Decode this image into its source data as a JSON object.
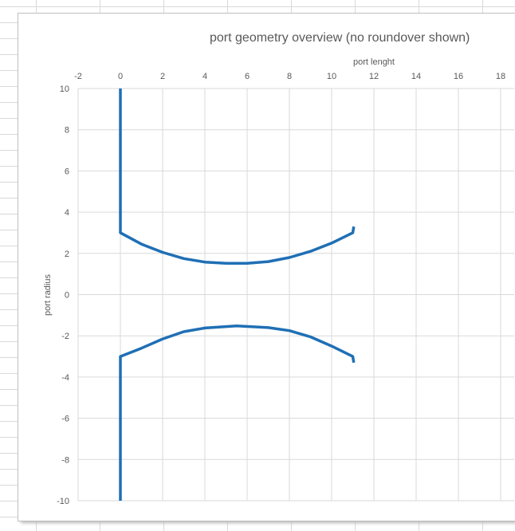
{
  "chart_data": {
    "type": "line",
    "title": "port geometry overview (no roundover shown)",
    "xlabel": "port lenght",
    "ylabel": "port radius",
    "xlim": [
      -2,
      18
    ],
    "ylim": [
      -10,
      10
    ],
    "x_ticks": [
      -2,
      0,
      2,
      4,
      6,
      8,
      10,
      12,
      14,
      16,
      18
    ],
    "y_ticks": [
      10,
      8,
      6,
      4,
      2,
      0,
      -2,
      -4,
      -6,
      -8,
      -10
    ],
    "x_axis_position": "top",
    "grid": true,
    "legend": "none",
    "series_color": "#1f6fb5",
    "series": [
      {
        "x": [
          0,
          0,
          1,
          2,
          3,
          4,
          5,
          6,
          7,
          8,
          9,
          10,
          11,
          11.05
        ],
        "y": [
          10,
          3,
          2.45,
          2.05,
          1.75,
          1.58,
          1.52,
          1.52,
          1.6,
          1.8,
          2.1,
          2.5,
          3.0,
          3.3
        ]
      },
      {
        "x": [
          0,
          0,
          1,
          2,
          3,
          4,
          5.5,
          7,
          8,
          9,
          10,
          11,
          11.05
        ],
        "y": [
          -10,
          -3,
          -2.6,
          -2.15,
          -1.8,
          -1.62,
          -1.52,
          -1.6,
          -1.75,
          -2.05,
          -2.5,
          -3.0,
          -3.3
        ]
      }
    ]
  }
}
